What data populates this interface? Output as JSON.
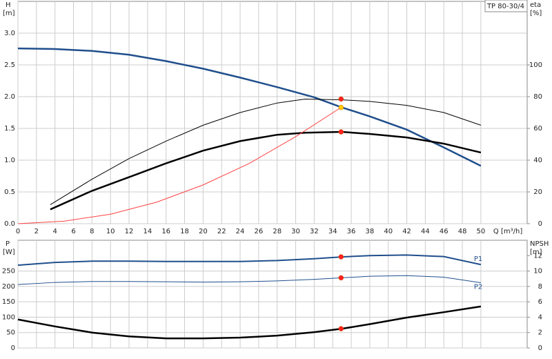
{
  "chart_data": [
    {
      "type": "line",
      "title": "TP 80-30/4",
      "y_label": "H",
      "y_unit": "[m]",
      "y2_label": "eta",
      "y2_unit": "[%]",
      "x_label": "Q [m³/h]",
      "xlim": [
        0,
        55
      ],
      "xticks": [
        0,
        2,
        4,
        6,
        8,
        10,
        12,
        14,
        16,
        18,
        20,
        22,
        24,
        26,
        28,
        30,
        32,
        34,
        36,
        38,
        40,
        42,
        44,
        46,
        48,
        50
      ],
      "x_tick_labels": true,
      "ylim": [
        0,
        3.5
      ],
      "yticks": [
        {
          "value": 0,
          "label": "0.0"
        },
        0.5,
        {
          "value": 1,
          "label": "1.0"
        },
        1.5,
        {
          "value": 2,
          "label": "2.0"
        },
        2.5,
        {
          "value": 3,
          "label": "3.0"
        }
      ],
      "y2lim": [
        0,
        140
      ],
      "y2ticks": [
        0,
        20,
        40,
        60,
        80,
        100
      ],
      "grid": true,
      "series": [
        {
          "color": "#1f4e8c",
          "width": 2.5,
          "x": [
            0,
            4,
            8,
            12,
            16,
            20,
            24,
            28,
            32,
            35,
            38,
            42,
            46,
            50
          ],
          "values": [
            2.76,
            2.75,
            2.72,
            2.66,
            2.56,
            2.44,
            2.3,
            2.15,
            1.99,
            1.83,
            1.69,
            1.48,
            1.2,
            0.91
          ]
        },
        {
          "color": "#000000",
          "width": 1,
          "axis": "y2",
          "x": [
            3.5,
            8,
            12,
            16,
            20,
            24,
            28,
            31,
            35,
            38,
            42,
            46,
            50
          ],
          "values": [
            12,
            28,
            41,
            52,
            62,
            70,
            76,
            78.5,
            78,
            77,
            74.5,
            70,
            62
          ]
        },
        {
          "color": "#000000",
          "width": 2.5,
          "axis": "y2",
          "x": [
            3.5,
            8,
            12,
            16,
            20,
            24,
            28,
            31,
            35,
            38,
            42,
            46,
            50
          ],
          "values": [
            9,
            20.7,
            29.3,
            38,
            46,
            52,
            56,
            57.3,
            57.8,
            56.5,
            54.3,
            50.4,
            44.8
          ]
        },
        {
          "color": "#ff4040",
          "width": 1,
          "x": [
            0,
            5,
            10,
            15,
            20,
            25,
            30,
            34.9
          ],
          "values": [
            0,
            0.04,
            0.15,
            0.34,
            0.61,
            0.95,
            1.37,
            1.83
          ]
        }
      ],
      "markers": [
        {
          "x": 34.9,
          "value": 78.5,
          "axis": "y2",
          "color": "#ff2020"
        },
        {
          "x": 34.9,
          "value": 1.83,
          "color": "#ffcc00"
        },
        {
          "x": 34.9,
          "value": 57.8,
          "axis": "y2",
          "color": "#ff2020"
        }
      ]
    },
    {
      "type": "line",
      "y_label": "P",
      "y_unit": "[W]",
      "y2_label": "NPSH",
      "y2_unit": "[m]",
      "xlim": [
        0,
        55
      ],
      "xticks": [
        0,
        2,
        4,
        6,
        8,
        10,
        12,
        14,
        16,
        18,
        20,
        22,
        24,
        26,
        28,
        30,
        32,
        34,
        36,
        38,
        40,
        42,
        44,
        46,
        48,
        50
      ],
      "x_tick_labels": false,
      "ylim": [
        0,
        350
      ],
      "yticks": [
        0,
        50,
        100,
        150,
        200,
        250
      ],
      "y2lim": [
        0,
        14
      ],
      "y2ticks": [
        0,
        2,
        4,
        6,
        8,
        10,
        12
      ],
      "grid": true,
      "series": [
        {
          "name": "P1",
          "color": "#1f4e8c",
          "width": 2,
          "x": [
            0,
            4,
            8,
            12,
            16,
            20,
            24,
            28,
            32,
            35,
            38,
            42,
            46,
            50
          ],
          "values": [
            269,
            278,
            282,
            282,
            281,
            281,
            281,
            284,
            290,
            296,
            300,
            302,
            297,
            271
          ]
        },
        {
          "name": "P2",
          "color": "#1f4e8c",
          "width": 1,
          "x": [
            0,
            4,
            8,
            12,
            16,
            20,
            24,
            28,
            32,
            35,
            38,
            42,
            46,
            50
          ],
          "values": [
            206,
            213,
            216,
            216,
            215,
            214,
            215,
            218,
            223,
            228,
            233,
            235,
            230,
            212
          ]
        },
        {
          "color": "#000000",
          "width": 2.5,
          "axis": "y2",
          "x": [
            0,
            4,
            8,
            12,
            16,
            20,
            24,
            28,
            32,
            35,
            38,
            42,
            46,
            50
          ],
          "values": [
            3.7,
            2.8,
            2,
            1.5,
            1.25,
            1.25,
            1.35,
            1.6,
            2.05,
            2.5,
            3.1,
            3.95,
            4.65,
            5.4
          ]
        }
      ],
      "markers": [
        {
          "x": 34.9,
          "value": 296,
          "color": "#ff2020"
        },
        {
          "x": 34.9,
          "value": 228,
          "color": "#ff2020"
        },
        {
          "x": 34.9,
          "value": 2.5,
          "axis": "y2",
          "color": "#ff2020"
        }
      ]
    }
  ]
}
